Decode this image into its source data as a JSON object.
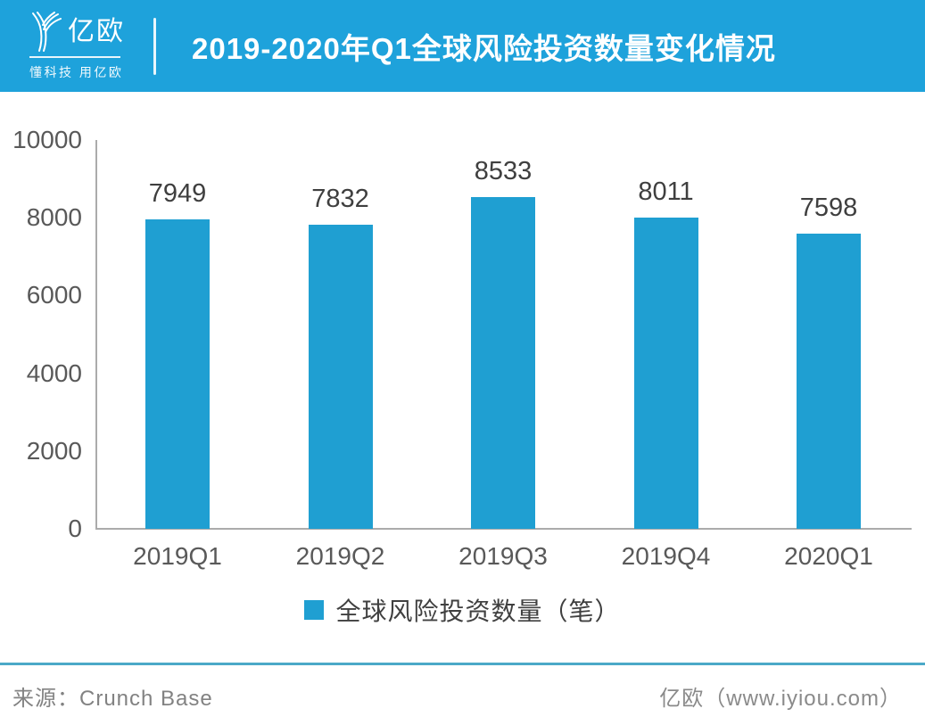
{
  "header": {
    "logo_text": "亿欧",
    "logo_tagline": "懂科技 用亿欧",
    "title": "2019-2020年Q1全球风险投资数量变化情况"
  },
  "chart_data": {
    "type": "bar",
    "title": "2019-2020年Q1全球风险投资数量变化情况",
    "categories": [
      "2019Q1",
      "2019Q2",
      "2019Q3",
      "2019Q4",
      "2020Q1"
    ],
    "values": [
      7949,
      7832,
      8533,
      8011,
      7598
    ],
    "series_name": "全球风险投资数量（笔）",
    "xlabel": "",
    "ylabel": "",
    "ylim": [
      0,
      10000
    ],
    "yticks": [
      0,
      2000,
      4000,
      6000,
      8000,
      10000
    ],
    "grid": false,
    "legend_position": "bottom",
    "value_labels_shown": true,
    "bar_color": "#1F9FD2"
  },
  "legend": {
    "label": "全球风险投资数量（笔）"
  },
  "footer": {
    "source": "来源：Crunch Base",
    "site": "亿欧（www.iyiou.com）"
  },
  "colors": {
    "header_bg": "#1EA2DB",
    "bar": "#1F9FD2",
    "axis_line": "#ABABAB",
    "footer_divider": "#4BA9C8",
    "tick_label": "#595959",
    "value_label": "#3F3F3F"
  }
}
